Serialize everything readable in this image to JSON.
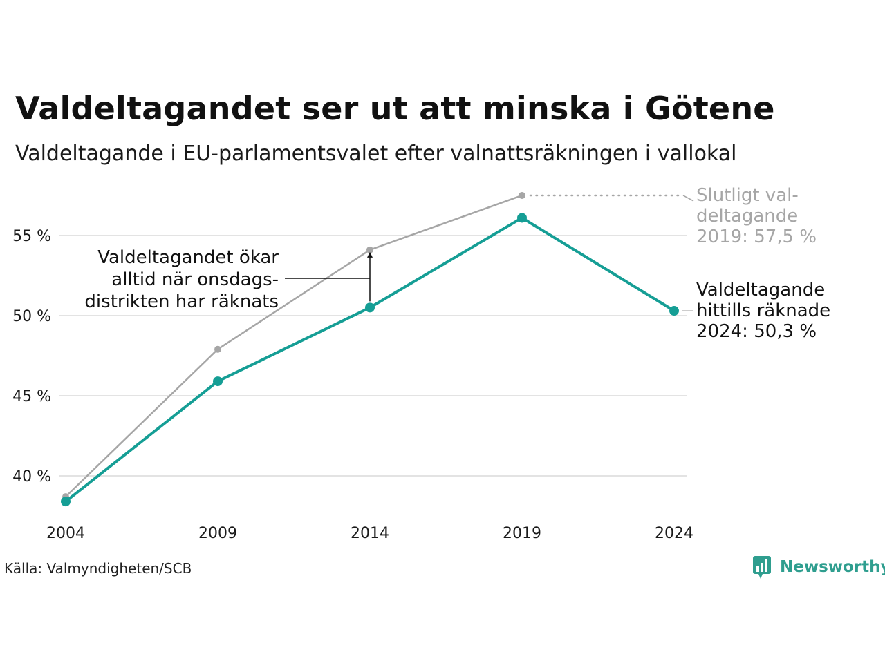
{
  "title": "Valdeltagandet ser ut att minska i Götene",
  "subtitle": "Valdeltagande i EU-parlamentsvalet efter valnattsräkningen i vallokal",
  "source": "Källa: Valmyndigheten/SCB",
  "brand": "Newsworthy",
  "colors": {
    "accent": "#159e95",
    "final": "#a6a6a6",
    "grid": "#e3e3e3",
    "brand": "#2f9e8f"
  },
  "chart_data": {
    "type": "line",
    "x": [
      "2004",
      "2009",
      "2014",
      "2019",
      "2024"
    ],
    "series": [
      {
        "key": "final",
        "values": [
          38.7,
          47.9,
          54.1,
          57.5,
          null
        ]
      },
      {
        "key": "election_night",
        "values": [
          38.4,
          45.9,
          50.5,
          56.1,
          50.3
        ]
      }
    ],
    "ylim": [
      37.5,
      57.8
    ],
    "yticks": [
      40,
      45,
      50,
      55
    ],
    "ytick_labels": [
      "40 %",
      "45 %",
      "50 %",
      "55 %"
    ],
    "annotations": {
      "final_label": [
        "Slutligt val-",
        "deltagande",
        "2019: 57,5 %"
      ],
      "current_label": [
        "Valdeltagande",
        "hittills räknade",
        "2024: 50,3 %"
      ],
      "note": [
        "Valdeltagandet ökar",
        "alltid när onsdags-",
        "distrikten har räknats"
      ]
    }
  }
}
